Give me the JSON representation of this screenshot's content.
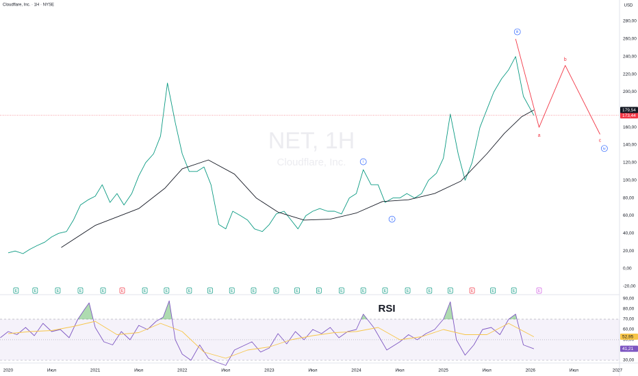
{
  "header": {
    "symbol_line": "Cloudflare, Inc. · 1H · NYSE",
    "currency": "USD"
  },
  "watermark": {
    "ticker": "NET, 1H",
    "name": "Cloudflare, Inc."
  },
  "chart_data": [
    {
      "type": "line",
      "xlim": [
        2019.906,
        2027.024
      ],
      "ylim": [
        -28.6,
        304
      ],
      "grid": false,
      "yticks": [
        {
          "value": 280,
          "label": "280,00"
        },
        {
          "value": 260,
          "label": "260,00"
        },
        {
          "value": 240,
          "label": "240,00"
        },
        {
          "value": 220,
          "label": "220,00"
        },
        {
          "value": 200,
          "label": "200,00"
        },
        {
          "value": 160,
          "label": "160,00"
        },
        {
          "value": 140,
          "label": "140,00"
        },
        {
          "value": 120,
          "label": "120,00"
        },
        {
          "value": 100,
          "label": "100,00"
        },
        {
          "value": 80,
          "label": "80,00"
        },
        {
          "value": 60,
          "label": "60,00"
        },
        {
          "value": 40,
          "label": "40,00"
        },
        {
          "value": 20,
          "label": "20,00"
        },
        {
          "value": 0,
          "label": "0,00"
        },
        {
          "value": -20,
          "label": "-20,00"
        }
      ],
      "xticks": [
        2020,
        {
          "value": 2020.5,
          "label": "Июл"
        },
        2021,
        {
          "value": 2021.5,
          "label": "Июл"
        },
        2022,
        {
          "value": 2022.5,
          "label": "Июл"
        },
        2023,
        {
          "value": 2023.5,
          "label": "Июл"
        },
        2024,
        {
          "value": 2024.5,
          "label": "Июл"
        },
        2025,
        {
          "value": 2025.5,
          "label": "Июл"
        },
        2026,
        {
          "value": 2026.5,
          "label": "Июл"
        },
        2027
      ],
      "series": [
        {
          "color": "#089981",
          "label_color": "#f23645",
          "price_line": true,
          "last_label": "173,44",
          "x": [
            2020.0,
            2020.08,
            2020.17,
            2020.25,
            2020.33,
            2020.42,
            2020.5,
            2020.58,
            2020.67,
            2020.75,
            2020.83,
            2020.92,
            2021.0,
            2021.08,
            2021.17,
            2021.25,
            2021.33,
            2021.42,
            2021.5,
            2021.58,
            2021.67,
            2021.75,
            2021.83,
            2021.92,
            2022.0,
            2022.08,
            2022.17,
            2022.25,
            2022.33,
            2022.42,
            2022.5,
            2022.58,
            2022.67,
            2022.75,
            2022.83,
            2022.92,
            2023.0,
            2023.08,
            2023.17,
            2023.25,
            2023.33,
            2023.42,
            2023.5,
            2023.58,
            2023.67,
            2023.75,
            2023.83,
            2023.92,
            2024.0,
            2024.08,
            2024.17,
            2024.25,
            2024.33,
            2024.42,
            2024.5,
            2024.58,
            2024.67,
            2024.75,
            2024.83,
            2024.92,
            2025.0,
            2025.08,
            2025.17,
            2025.25,
            2025.33,
            2025.42,
            2025.5,
            2025.58,
            2025.67,
            2025.75,
            2025.83,
            2025.92,
            2026.04
          ],
          "values": [
            18,
            20,
            17,
            22,
            26,
            30,
            36,
            40,
            42,
            55,
            72,
            78,
            82,
            95,
            75,
            85,
            72,
            85,
            105,
            120,
            130,
            150,
            210,
            165,
            130,
            110,
            110,
            115,
            95,
            50,
            45,
            65,
            60,
            55,
            45,
            42,
            50,
            62,
            65,
            55,
            45,
            60,
            65,
            68,
            65,
            65,
            62,
            80,
            85,
            112,
            95,
            95,
            75,
            80,
            80,
            85,
            80,
            85,
            100,
            108,
            125,
            175,
            130,
            100,
            120,
            160,
            180,
            200,
            215,
            225,
            240,
            195,
            173.44
          ]
        },
        {
          "color": "#131722",
          "last_label": "179,54",
          "x": [
            2020.61,
            2021.0,
            2021.5,
            2021.8,
            2022.0,
            2022.3,
            2022.6,
            2022.85,
            2023.1,
            2023.4,
            2023.7,
            2024.0,
            2024.3,
            2024.6,
            2024.9,
            2025.2,
            2025.5,
            2025.7,
            2025.9,
            2026.04
          ],
          "values": [
            24,
            49,
            68,
            91,
            113,
            123,
            107,
            80,
            64,
            55,
            56,
            63,
            76,
            78,
            85,
            99,
            130,
            153,
            172,
            179.54
          ]
        },
        {
          "color": "#f23645",
          "x": [
            2025.83,
            2026.1,
            2026.4,
            2026.8
          ],
          "values": [
            260,
            160,
            230,
            152
          ]
        }
      ],
      "annotations": [
        {
          "text": "i",
          "x": 2024.08,
          "y": 121,
          "style": "circle",
          "color": "#2962ff"
        },
        {
          "text": "ii",
          "x": 2024.41,
          "y": 56,
          "style": "circle",
          "color": "#2962ff"
        },
        {
          "text": "iii",
          "x": 2025.85,
          "y": 268,
          "style": "circle",
          "color": "#2962ff"
        },
        {
          "text": "iv",
          "x": 2026.85,
          "y": 136,
          "style": "circle",
          "color": "#2962ff"
        },
        {
          "text": "a",
          "x": 2026.1,
          "y": 151,
          "style": "plain",
          "color": "#f23645"
        },
        {
          "text": "b",
          "x": 2026.4,
          "y": 237,
          "style": "plain",
          "color": "#f23645"
        },
        {
          "text": "c",
          "x": 2026.8,
          "y": 145,
          "style": "plain",
          "color": "#f23645"
        }
      ],
      "events": [
        {
          "label": "E",
          "x": 2020.09,
          "color": "#089981"
        },
        {
          "label": "E",
          "x": 2020.31,
          "color": "#089981"
        },
        {
          "label": "E",
          "x": 2020.57,
          "color": "#089981"
        },
        {
          "label": "E",
          "x": 2020.83,
          "color": "#089981"
        },
        {
          "label": "E",
          "x": 2021.09,
          "color": "#089981"
        },
        {
          "label": "E",
          "x": 2021.31,
          "color": "#f23645"
        },
        {
          "label": "E",
          "x": 2021.57,
          "color": "#089981"
        },
        {
          "label": "E",
          "x": 2021.82,
          "color": "#089981"
        },
        {
          "label": "E",
          "x": 2022.08,
          "color": "#089981"
        },
        {
          "label": "E",
          "x": 2022.32,
          "color": "#089981"
        },
        {
          "label": "E",
          "x": 2022.57,
          "color": "#089981"
        },
        {
          "label": "E",
          "x": 2022.82,
          "color": "#089981"
        },
        {
          "label": "E",
          "x": 2023.08,
          "color": "#089981"
        },
        {
          "label": "E",
          "x": 2023.32,
          "color": "#089981"
        },
        {
          "label": "E",
          "x": 2023.57,
          "color": "#089981"
        },
        {
          "label": "E",
          "x": 2023.83,
          "color": "#089981"
        },
        {
          "label": "E",
          "x": 2024.08,
          "color": "#089981"
        },
        {
          "label": "E",
          "x": 2024.33,
          "color": "#089981"
        },
        {
          "label": "E",
          "x": 2024.59,
          "color": "#089981"
        },
        {
          "label": "E",
          "x": 2024.84,
          "color": "#089981"
        },
        {
          "label": "E",
          "x": 2025.08,
          "color": "#089981"
        },
        {
          "label": "E",
          "x": 2025.33,
          "color": "#f23645"
        },
        {
          "label": "E",
          "x": 2025.57,
          "color": "#089981"
        },
        {
          "label": "E",
          "x": 2025.81,
          "color": "#089981"
        },
        {
          "label": "E",
          "x": 2026.1,
          "color": "#d05ce3"
        }
      ]
    },
    {
      "type": "line",
      "title": "RSI",
      "title_pos": {
        "x": 2024.35,
        "y": 80
      },
      "xlim": [
        2019.906,
        2027.024
      ],
      "ylim": [
        28,
        93.3
      ],
      "yticks": [
        {
          "value": 90,
          "label": "90,00"
        },
        {
          "value": 80,
          "label": "80,00"
        },
        {
          "value": 70,
          "label": "70,00"
        },
        {
          "value": 60,
          "label": "60,00"
        },
        {
          "value": 50,
          "label": "50,00"
        },
        {
          "value": 30,
          "label": "30,00"
        }
      ],
      "levels": [
        70,
        50,
        30
      ],
      "band_color": "#7e57c2",
      "overbought_color": "#4caf50",
      "series": [
        {
          "color": "#7e57c2",
          "last_label": "41,21",
          "x": [
            2019.91,
            2020.0,
            2020.1,
            2020.2,
            2020.3,
            2020.4,
            2020.5,
            2020.6,
            2020.7,
            2020.8,
            2020.88,
            2020.93,
            2021.0,
            2021.1,
            2021.2,
            2021.3,
            2021.4,
            2021.5,
            2021.6,
            2021.7,
            2021.78,
            2021.85,
            2021.92,
            2022.0,
            2022.1,
            2022.2,
            2022.3,
            2022.4,
            2022.5,
            2022.6,
            2022.7,
            2022.8,
            2022.9,
            2023.0,
            2023.1,
            2023.2,
            2023.3,
            2023.4,
            2023.5,
            2023.6,
            2023.7,
            2023.8,
            2023.9,
            2024.0,
            2024.08,
            2024.2,
            2024.35,
            2024.5,
            2024.6,
            2024.7,
            2024.8,
            2024.9,
            2025.0,
            2025.08,
            2025.15,
            2025.25,
            2025.35,
            2025.45,
            2025.55,
            2025.65,
            2025.75,
            2025.83,
            2025.92,
            2026.04
          ],
          "values": [
            52,
            58,
            55,
            62,
            54,
            66,
            58,
            60,
            52,
            70,
            80,
            86,
            62,
            48,
            45,
            58,
            50,
            64,
            60,
            68,
            72,
            88,
            50,
            36,
            30,
            45,
            32,
            28,
            25,
            40,
            44,
            48,
            38,
            42,
            56,
            46,
            58,
            50,
            60,
            56,
            62,
            52,
            58,
            60,
            75,
            62,
            40,
            48,
            55,
            50,
            56,
            60,
            70,
            87,
            50,
            35,
            45,
            60,
            62,
            55,
            70,
            75,
            45,
            41.21
          ]
        },
        {
          "color": "#f7c548",
          "last_label": "52,95",
          "x": [
            2020.0,
            2020.25,
            2020.5,
            2020.75,
            2021.0,
            2021.25,
            2021.5,
            2021.75,
            2022.0,
            2022.25,
            2022.5,
            2022.75,
            2023.0,
            2023.25,
            2023.5,
            2023.75,
            2024.0,
            2024.25,
            2024.5,
            2024.75,
            2025.0,
            2025.25,
            2025.5,
            2025.75,
            2026.04
          ],
          "values": [
            56,
            58,
            59,
            63,
            68,
            55,
            57,
            66,
            58,
            38,
            32,
            40,
            43,
            50,
            54,
            57,
            58,
            62,
            50,
            53,
            60,
            55,
            55,
            66,
            52.95
          ]
        }
      ]
    }
  ]
}
